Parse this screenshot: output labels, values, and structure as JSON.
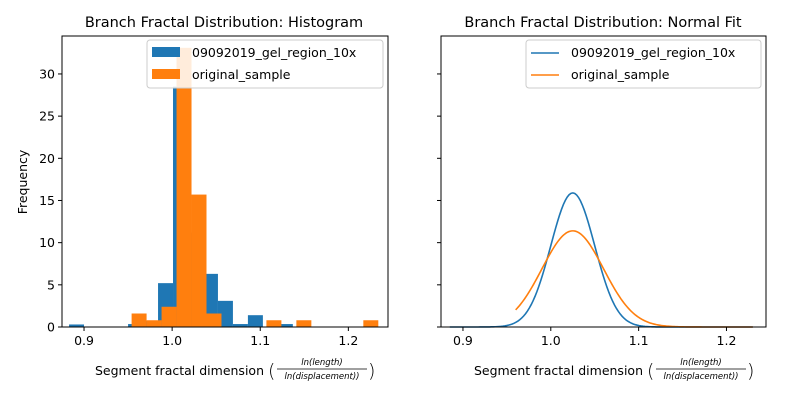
{
  "colors": {
    "blue": "#1f77b4",
    "orange": "#ff7f0e"
  },
  "chart_data": [
    {
      "type": "bar",
      "title": "Branch Fractal Distribution: Histogram",
      "xlabel": "Segment fractal dimension",
      "xlabel_num": "ln(length)",
      "xlabel_den": "ln(displacement)",
      "ylabel": "Frequency",
      "xlim": [
        0.875,
        1.245
      ],
      "ylim": [
        0,
        34.5
      ],
      "xticks": [
        "0.9",
        "1.0",
        "1.1",
        "1.2"
      ],
      "yticks": [
        "0",
        "5",
        "10",
        "15",
        "20",
        "25",
        "30"
      ],
      "legend_position": "top-right",
      "bin_width": 0.017,
      "series": [
        {
          "name": "09092019_gel_region_10x",
          "color_key": "blue",
          "bins": [
            [
              0.8915,
              0.3
            ],
            [
              0.9585,
              0.35
            ],
            [
              0.9755,
              0.7
            ],
            [
              0.9925,
              5.2
            ],
            [
              1.0095,
              28.5
            ],
            [
              1.0265,
              11.2
            ],
            [
              1.0435,
              6.3
            ],
            [
              1.0605,
              3.1
            ],
            [
              1.0775,
              0.35
            ],
            [
              1.0945,
              1.4
            ],
            [
              1.1285,
              0.35
            ]
          ]
        },
        {
          "name": "original_sample",
          "color_key": "orange",
          "bins": [
            [
              0.9625,
              1.6
            ],
            [
              0.9795,
              0.8
            ],
            [
              0.9965,
              2.4
            ],
            [
              1.0135,
              33.1
            ],
            [
              1.0305,
              15.7
            ],
            [
              1.0475,
              1.6
            ],
            [
              1.1155,
              0.8
            ],
            [
              1.1495,
              0.8
            ],
            [
              1.2255,
              0.8
            ]
          ]
        }
      ]
    },
    {
      "type": "line",
      "title": "Branch Fractal Distribution: Normal Fit",
      "xlabel": "Segment fractal dimension",
      "xlabel_num": "ln(length)",
      "xlabel_den": "ln(displacement)",
      "xlim": [
        0.875,
        1.245
      ],
      "xticks": [
        "0.9",
        "1.0",
        "1.1",
        "1.2"
      ],
      "legend_position": "top-right",
      "series": [
        {
          "name": "09092019_gel_region_10x",
          "color_key": "blue",
          "mean": 1.025,
          "sd": 0.025,
          "peak": 15.9,
          "x_range": [
            0.885,
            1.23
          ]
        },
        {
          "name": "original_sample",
          "color_key": "orange",
          "mean": 1.025,
          "sd": 0.035,
          "peak": 11.4,
          "x_range": [
            0.96,
            1.23
          ]
        }
      ]
    }
  ]
}
